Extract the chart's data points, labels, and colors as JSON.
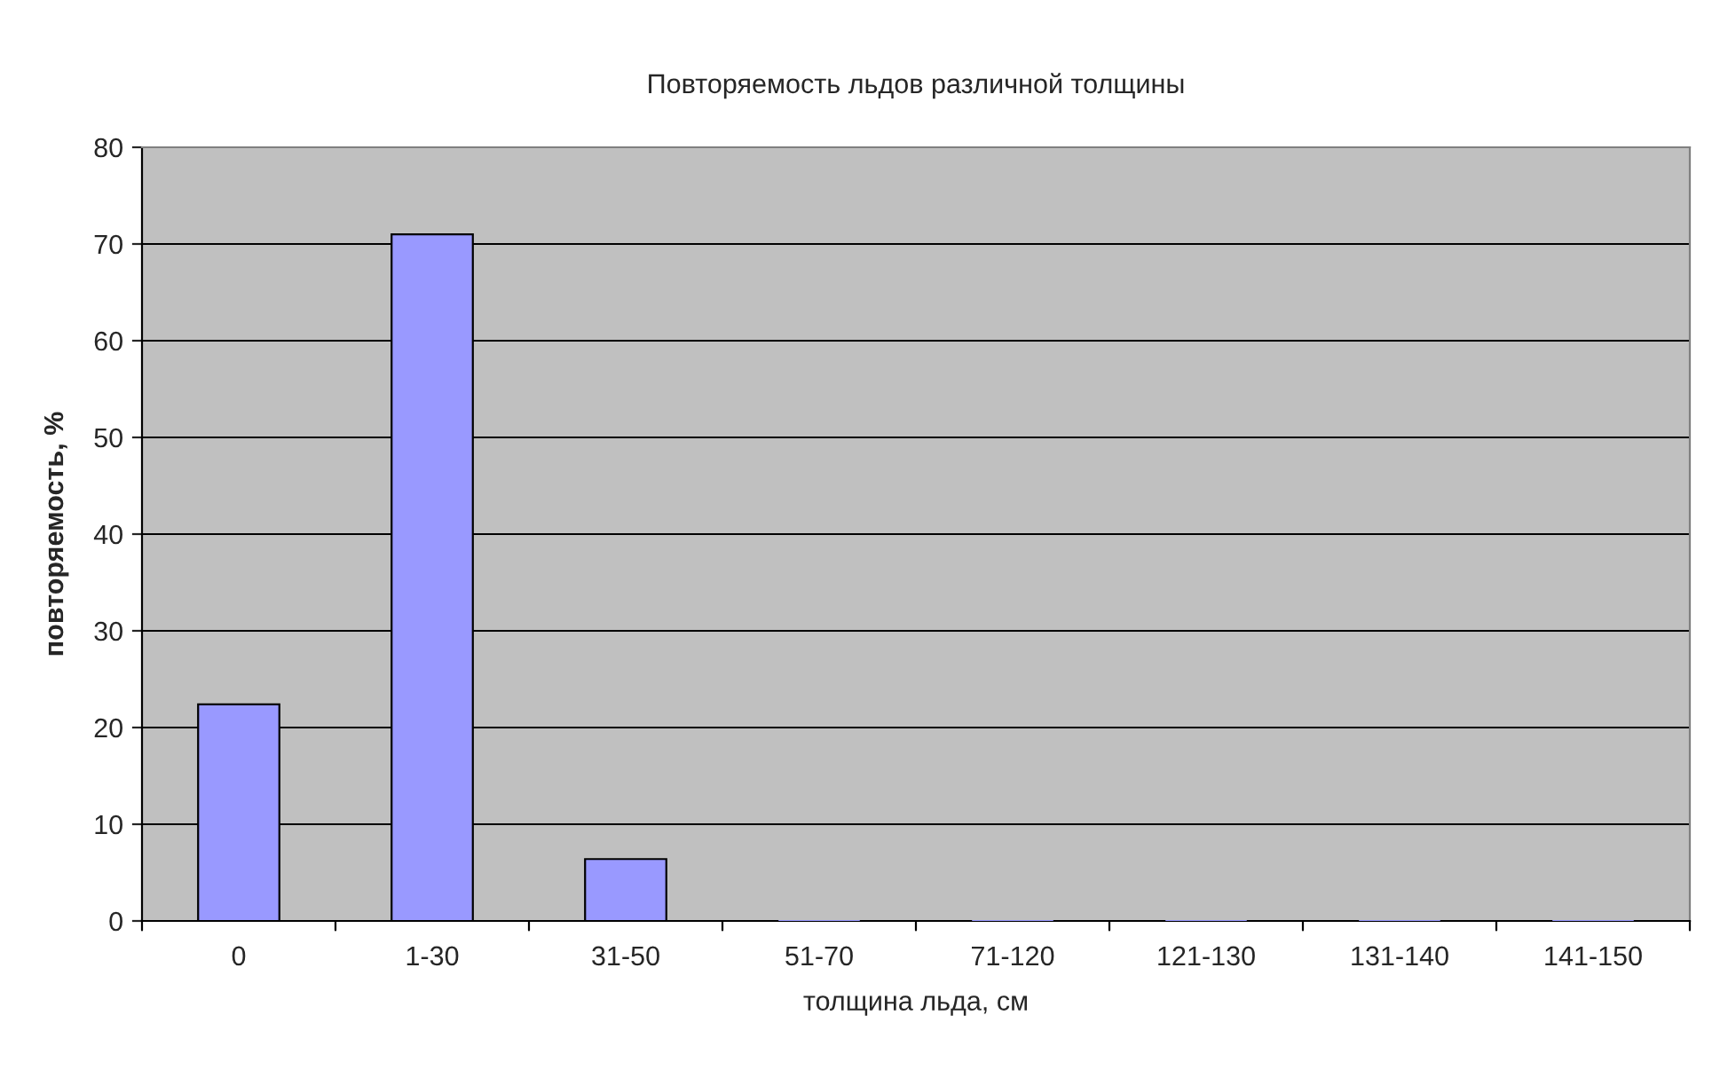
{
  "chart_data": {
    "type": "bar",
    "title": "Повторяемость льдов различной толщины",
    "xlabel": "толщина льда, см",
    "ylabel": "повторяемость, %",
    "categories": [
      "0",
      "1-30",
      "31-50",
      "51-70",
      "71-120",
      "121-130",
      "131-140",
      "141-150"
    ],
    "values": [
      22.4,
      71.0,
      6.4,
      0,
      0,
      0,
      0,
      0
    ],
    "color": "#9999ff",
    "ylim": [
      0,
      80
    ],
    "yticks": [
      0,
      10,
      20,
      30,
      40,
      50,
      60,
      70,
      80
    ],
    "grid": "y",
    "legend": false
  }
}
